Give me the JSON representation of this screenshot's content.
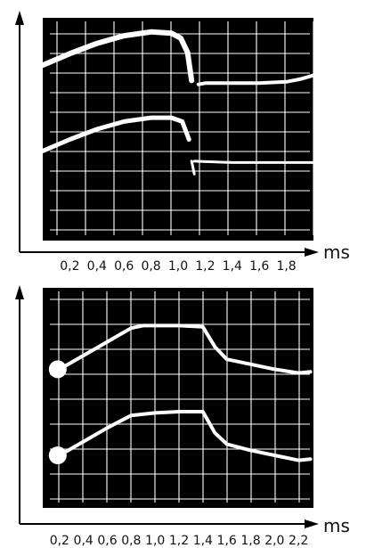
{
  "colors": {
    "screen": "#000000",
    "grid": "#ffffff",
    "trace": "#ffffff",
    "axis": "#000000",
    "page": "#ffffff"
  },
  "chart_data": [
    {
      "type": "line",
      "xlabel": "ms",
      "ylabel": "",
      "xlim": [
        0.0,
        2.0
      ],
      "ylim": [
        0,
        8
      ],
      "grid": true,
      "tick_labels": [
        "0,2",
        "0,4",
        "0,6",
        "0,8",
        "1,0",
        "1,2",
        "1,4",
        "1,6",
        "1,8"
      ],
      "tick_values": [
        0.2,
        0.4,
        0.6,
        0.8,
        1.0,
        1.2,
        1.4,
        1.6,
        1.8
      ],
      "series": [
        {
          "x": [
            0.0,
            0.2,
            0.4,
            0.6,
            0.8,
            0.95,
            1.02,
            1.07,
            1.1
          ],
          "y": [
            6.5,
            6.95,
            7.35,
            7.65,
            7.8,
            7.75,
            7.55,
            7.0,
            5.9
          ],
          "segments": [
            {
              "x": [
                1.15,
                1.2,
                1.4,
                1.6,
                1.8,
                1.9,
                2.0
              ],
              "y": [
                5.75,
                5.8,
                5.8,
                5.8,
                5.85,
                5.95,
                6.1
              ]
            }
          ]
        },
        {
          "x": [
            0.0,
            0.2,
            0.4,
            0.6,
            0.8,
            0.95,
            1.03,
            1.08
          ],
          "y": [
            3.15,
            3.6,
            4.0,
            4.3,
            4.45,
            4.45,
            4.3,
            3.6
          ],
          "segments": [
            {
              "x": [
                1.1,
                1.12
              ],
              "y": [
                2.75,
                2.25
              ]
            },
            {
              "x": [
                1.12,
                1.4,
                1.7,
                2.0
              ],
              "y": [
                2.75,
                2.7,
                2.7,
                2.7
              ]
            }
          ]
        }
      ]
    },
    {
      "type": "line",
      "xlabel": "ms",
      "ylabel": "",
      "xlim": [
        0.0,
        2.4
      ],
      "ylim": [
        0,
        8
      ],
      "grid": true,
      "tick_labels": [
        "0,2",
        "0,4",
        "0,6",
        "0,8",
        "1,0",
        "1,2",
        "1,4",
        "1,6",
        "1,8",
        "2,0",
        "2,2"
      ],
      "tick_values": [
        0.2,
        0.4,
        0.6,
        0.8,
        1.0,
        1.2,
        1.4,
        1.6,
        1.8,
        2.0,
        2.2
      ],
      "markers": [
        {
          "x": 0.2,
          "y": 5.2
        },
        {
          "x": 0.2,
          "y": 1.75
        }
      ],
      "series": [
        {
          "x": [
            0.2,
            0.4,
            0.6,
            0.8,
            0.9,
            1.0,
            1.2,
            1.4,
            1.5,
            1.6,
            1.8,
            2.0,
            2.2,
            2.3
          ],
          "y": [
            5.2,
            5.75,
            6.3,
            6.85,
            6.95,
            6.95,
            6.95,
            6.9,
            6.1,
            5.6,
            5.4,
            5.2,
            5.05,
            5.1
          ]
        },
        {
          "x": [
            0.2,
            0.4,
            0.6,
            0.8,
            1.0,
            1.2,
            1.4,
            1.5,
            1.6,
            1.8,
            2.0,
            2.2,
            2.3
          ],
          "y": [
            1.75,
            2.3,
            2.85,
            3.35,
            3.45,
            3.5,
            3.5,
            2.65,
            2.2,
            1.95,
            1.75,
            1.55,
            1.6
          ]
        }
      ]
    }
  ]
}
